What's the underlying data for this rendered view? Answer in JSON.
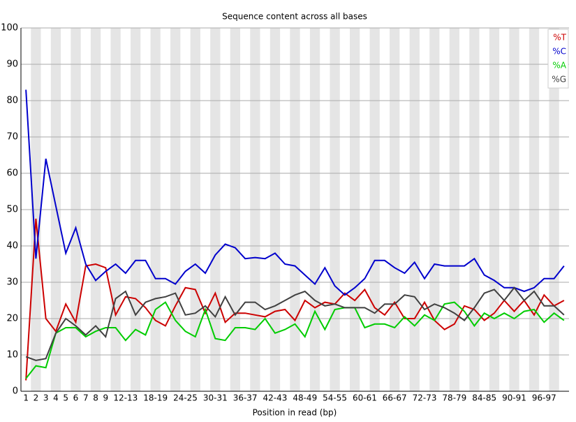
{
  "chart_data": {
    "type": "line",
    "title": "Sequence content across all bases",
    "x_label": "Position in read (bp)",
    "categories": [
      "1",
      "2",
      "3",
      "4",
      "5",
      "6",
      "7",
      "8",
      "9",
      null,
      "12-13",
      null,
      null,
      "18-19",
      null,
      null,
      "24-25",
      null,
      null,
      "30-31",
      null,
      null,
      "36-37",
      null,
      null,
      "42-43",
      null,
      null,
      "48-49",
      null,
      null,
      "54-55",
      null,
      null,
      "60-61",
      null,
      null,
      "66-67",
      null,
      null,
      "72-73",
      null,
      null,
      "78-79",
      null,
      null,
      "84-85",
      null,
      null,
      "90-91",
      null,
      null,
      "96-97",
      null,
      null
    ],
    "series": [
      {
        "name": "%T",
        "color": "#cc0000",
        "values": [
          3,
          47.5,
          20,
          16.5,
          24,
          19,
          34.5,
          35,
          34,
          21,
          26,
          25.5,
          23,
          19.5,
          18,
          23.5,
          28.5,
          28,
          21.5,
          27,
          19,
          21.5,
          21.5,
          21,
          20.5,
          22,
          22.5,
          19.5,
          25,
          23,
          24.5,
          24,
          27,
          25,
          28,
          23,
          21,
          24.5,
          20,
          20,
          24.5,
          19.5,
          17,
          18.5,
          23.5,
          22.5,
          19.5,
          21.5,
          25,
          22,
          25,
          21,
          26.5,
          23.5,
          25
        ]
      },
      {
        "name": "%C",
        "color": "#0000cc",
        "values": [
          83,
          36.5,
          64,
          51,
          38,
          45,
          35,
          30.5,
          33,
          35,
          32.5,
          36,
          36,
          31,
          31,
          29.5,
          33,
          35,
          32.5,
          37.5,
          40.5,
          39.5,
          36.5,
          36.8,
          36.5,
          38,
          35,
          34.5,
          32,
          29.5,
          34,
          29,
          26.5,
          28.5,
          31,
          36,
          36,
          34,
          32.5,
          35.5,
          31,
          35,
          34.5,
          34.5,
          34.5,
          36.5,
          32,
          30.5,
          28.5,
          28.5,
          27.5,
          28.5,
          31,
          31,
          34.5
        ]
      },
      {
        "name": "%A",
        "color": "#00cc00",
        "values": [
          3.5,
          7,
          6.5,
          16,
          17.5,
          17.5,
          15,
          16.5,
          17.5,
          17.5,
          14,
          17,
          15.5,
          22.5,
          24.5,
          19.5,
          16.5,
          15,
          22.5,
          14.5,
          14,
          17.5,
          17.5,
          17,
          20,
          16,
          17,
          18.5,
          15,
          22,
          17,
          22.5,
          23,
          23,
          17.5,
          18.5,
          18.5,
          17.5,
          20.5,
          18,
          21,
          19.5,
          24,
          24.5,
          22,
          18,
          21.5,
          20,
          21.5,
          20,
          22,
          22.5,
          19,
          21.5,
          19.5
        ]
      },
      {
        "name": "%G",
        "color": "#404040",
        "values": [
          9.5,
          8.5,
          9,
          16,
          20,
          18,
          15.5,
          18,
          15,
          25.5,
          27.5,
          21,
          24.5,
          25.5,
          26,
          27,
          21,
          21.5,
          23.5,
          20.5,
          26,
          21,
          24.5,
          24.5,
          22.5,
          23.5,
          25,
          26.5,
          27.5,
          25,
          23.5,
          24,
          23,
          23,
          23,
          21.5,
          24,
          24,
          26.5,
          26,
          22.5,
          24,
          23,
          21.5,
          19.5,
          23,
          27,
          28,
          25,
          28.5,
          25,
          27.5,
          23.5,
          23.5,
          21
        ]
      }
    ],
    "ylim": [
      0,
      100
    ],
    "yticks": [
      0,
      10,
      20,
      30,
      40,
      50,
      60,
      70,
      80,
      90,
      100
    ],
    "grid": true,
    "legend": "top-right"
  }
}
